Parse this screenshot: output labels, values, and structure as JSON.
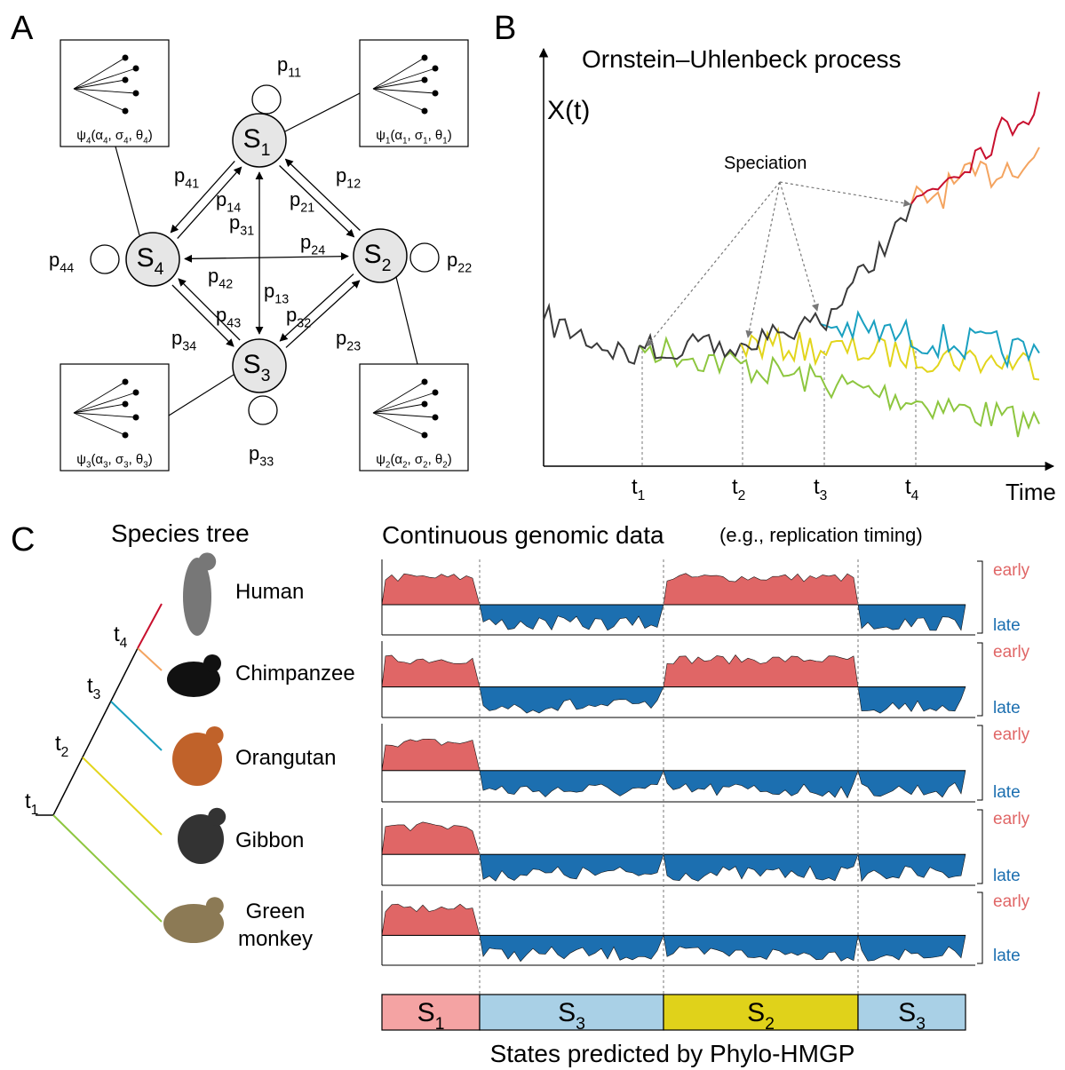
{
  "panel_a": {
    "label": "A",
    "states": [
      "S1",
      "S2",
      "S3",
      "S4"
    ],
    "transitions": [
      "p11",
      "p22",
      "p33",
      "p44",
      "p12",
      "p21",
      "p14",
      "p41",
      "p23",
      "p32",
      "p34",
      "p43",
      "p13",
      "p31",
      "p24",
      "p42"
    ],
    "models": [
      "ψ4(α4, σ4, θ4)",
      "ψ1(α1, σ1, θ1)",
      "ψ3(α3, σ3, θ3)",
      "ψ2(α2, σ2, θ2)"
    ]
  },
  "panel_b": {
    "label": "B",
    "title": "Ornstein–Uhlenbeck process",
    "y_label": "X(t)",
    "x_label": "Time",
    "ticks": [
      "t1",
      "t2",
      "t3",
      "t4"
    ],
    "annotation": "Speciation"
  },
  "panel_c": {
    "label": "C",
    "tree_title": "Species tree",
    "tree_ticks": [
      "t1",
      "t2",
      "t3",
      "t4"
    ],
    "species": [
      [
        "Human"
      ],
      [
        "Chimpanzee"
      ],
      [
        "Orangutan"
      ],
      [
        "Gibbon"
      ],
      [
        "Green",
        "monkey"
      ]
    ],
    "data_title": "Continuous genomic data",
    "data_subtitle": "(e.g., replication timing)",
    "early": "early",
    "late": "late",
    "states": [
      "S1",
      "S3",
      "S2",
      "S3"
    ],
    "states_title": "States predicted by Phylo-HMGP"
  }
}
